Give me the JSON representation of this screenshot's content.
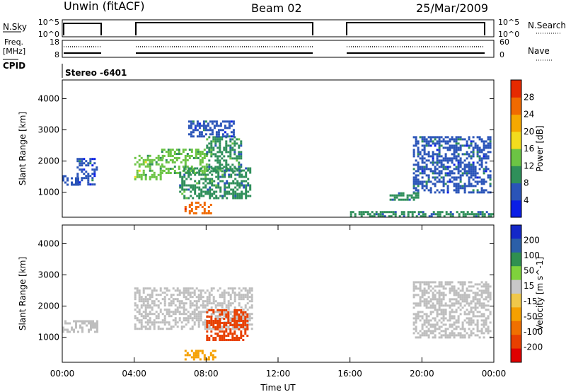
{
  "header": {
    "station": "Unwin (fitACF)",
    "beam": "Beam 02",
    "date": "25/Mar/2009"
  },
  "strips": {
    "nsky": {
      "left_label": "N.Sky",
      "right_label": "N.Search",
      "left_ticks": [
        "10^5",
        "10^0"
      ],
      "right_ticks": [
        "10^5",
        "10^0"
      ]
    },
    "freq": {
      "left_label_line1": "Freq.",
      "left_label_line2": "[MHz]",
      "right_label": "Nave",
      "left_ticks": [
        "18",
        "8"
      ],
      "right_ticks": [
        "60",
        "0"
      ]
    },
    "cpid": {
      "label": "CPID",
      "value": "Stereo -6401"
    }
  },
  "colors": {
    "power_scale": [
      "#0a1ee6",
      "#2a54b8",
      "#2f8f5a",
      "#6cc444",
      "#f2dc1e",
      "#f5a800",
      "#f06a00",
      "#e62a00"
    ],
    "velocity_scale": [
      "#1428c8",
      "#2b5fa8",
      "#2f9050",
      "#7fd23c",
      "#c8c8c8",
      "#f0c84a",
      "#f5a000",
      "#f07000",
      "#e84000",
      "#e00000"
    ],
    "ground_scatter": "#bebebe"
  },
  "chart_data": [
    {
      "type": "heatmap",
      "panel": "power",
      "ylabel": "Slant Range [km]",
      "yticks": [
        "1000",
        "2000",
        "3000",
        "4000"
      ],
      "ylim": [
        200,
        4600
      ],
      "xlim": [
        0,
        24
      ],
      "colorbar": {
        "label": "Power [dB]",
        "ticks": [
          "4",
          "8",
          "12",
          "16",
          "20",
          "24",
          "28"
        ],
        "range": [
          0,
          32
        ]
      },
      "echo_regions": [
        {
          "t_start": 0.0,
          "t_end": 0.9,
          "r_start": 1250,
          "r_end": 1550,
          "power": 6
        },
        {
          "t_start": 0.8,
          "t_end": 1.9,
          "r_start": 1250,
          "r_end": 2100,
          "power": 6
        },
        {
          "t_start": 4.0,
          "t_end": 5.6,
          "r_start": 1400,
          "r_end": 2200,
          "power": 14
        },
        {
          "t_start": 5.5,
          "t_end": 8.0,
          "r_start": 1600,
          "r_end": 2400,
          "power": 12
        },
        {
          "t_start": 8.0,
          "t_end": 10.0,
          "r_start": 1700,
          "r_end": 2800,
          "power": 10
        },
        {
          "t_start": 6.5,
          "t_end": 10.5,
          "r_start": 800,
          "r_end": 1800,
          "power": 9
        },
        {
          "t_start": 6.8,
          "t_end": 8.3,
          "r_start": 300,
          "r_end": 700,
          "power": 26
        },
        {
          "t_start": 7.0,
          "t_end": 9.5,
          "r_start": 2800,
          "r_end": 3300,
          "power": 6
        },
        {
          "t_start": 16.0,
          "t_end": 24.0,
          "r_start": 200,
          "r_end": 400,
          "power": 8
        },
        {
          "t_start": 19.5,
          "t_end": 23.8,
          "r_start": 1000,
          "r_end": 2800,
          "power": 7
        },
        {
          "t_start": 18.2,
          "t_end": 19.8,
          "r_start": 750,
          "r_end": 1000,
          "power": 10
        }
      ]
    },
    {
      "type": "heatmap",
      "panel": "velocity",
      "ylabel": "Slant Range [km]",
      "yticks": [
        "1000",
        "2000",
        "3000",
        "4000"
      ],
      "ylim": [
        200,
        4600
      ],
      "xlim": [
        0,
        24
      ],
      "xlabel": "Time UT",
      "xticks": [
        "00:00",
        "04:00",
        "08:00",
        "12:00",
        "16:00",
        "20:00",
        "00:00"
      ],
      "colorbar": {
        "label": "Velocity [m s^-1]",
        "ticks": [
          "200",
          "100",
          "50",
          "15",
          "-15",
          "-50",
          "-100",
          "-200"
        ],
        "range": [
          -250,
          250
        ]
      },
      "echo_regions": [
        {
          "t_start": 0.0,
          "t_end": 1.9,
          "r_start": 1200,
          "r_end": 1550,
          "velocity": 0
        },
        {
          "t_start": 4.0,
          "t_end": 10.5,
          "r_start": 1300,
          "r_end": 2600,
          "velocity": 0
        },
        {
          "t_start": 8.0,
          "t_end": 10.3,
          "r_start": 900,
          "r_end": 1900,
          "velocity": -180
        },
        {
          "t_start": 6.8,
          "t_end": 8.5,
          "r_start": 300,
          "r_end": 600,
          "velocity": -60
        },
        {
          "t_start": 19.5,
          "t_end": 23.8,
          "r_start": 1000,
          "r_end": 2800,
          "velocity": 0
        }
      ]
    }
  ]
}
